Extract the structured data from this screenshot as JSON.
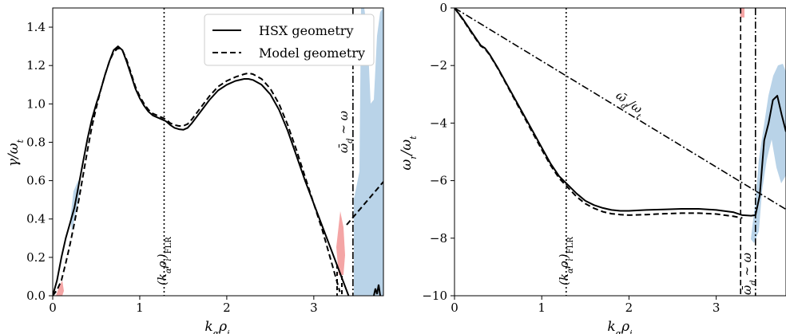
{
  "chart_data": [
    {
      "type": "line",
      "xlabel": "kαρi",
      "ylabel": "γ/ωt",
      "xlim": [
        0,
        3.8
      ],
      "ylim": [
        0,
        1.5
      ],
      "xticks": [
        "0",
        "1",
        "2",
        "3"
      ],
      "yticks": [
        "0.0",
        "0.2",
        "0.4",
        "0.6",
        "0.8",
        "1.0",
        "1.2",
        "1.4"
      ],
      "legend": {
        "placement": "top-right",
        "entries": [
          {
            "label": "HSX geometry",
            "style": "solid"
          },
          {
            "label": "Model geometry",
            "style": "dashed"
          }
        ]
      },
      "annotations": [
        {
          "text": "(kαρi)FLR",
          "x": 1.28
        },
        {
          "text": "ω̄d ∼ ω",
          "x": 3.45
        }
      ],
      "vlines": [
        {
          "x": 1.28,
          "style": "dotted"
        },
        {
          "x": 3.45,
          "style": "dashdot"
        }
      ],
      "colors": {
        "band_blue": "#b9d3e8",
        "band_red": "#f4a5a5"
      },
      "series": [
        {
          "style": "solid",
          "x": [
            0,
            0.05,
            0.1,
            0.15,
            0.2,
            0.25,
            0.3,
            0.35,
            0.4,
            0.45,
            0.5,
            0.55,
            0.6,
            0.65,
            0.7,
            0.75,
            0.8,
            0.85,
            0.9,
            0.95,
            1.0,
            1.05,
            1.1,
            1.15,
            1.2,
            1.25,
            1.3,
            1.35,
            1.4,
            1.45,
            1.5,
            1.55,
            1.6,
            1.7,
            1.8,
            1.9,
            2.0,
            2.1,
            2.2,
            2.25,
            2.3,
            2.4,
            2.5,
            2.6,
            2.7,
            2.8,
            2.9,
            3.0,
            3.1,
            3.2,
            3.3,
            3.35,
            3.4
          ],
          "y": [
            0,
            0.08,
            0.2,
            0.3,
            0.38,
            0.46,
            0.58,
            0.7,
            0.82,
            0.92,
            1.0,
            1.07,
            1.15,
            1.22,
            1.28,
            1.3,
            1.28,
            1.22,
            1.15,
            1.08,
            1.03,
            0.99,
            0.96,
            0.94,
            0.93,
            0.92,
            0.91,
            0.89,
            0.875,
            0.868,
            0.865,
            0.875,
            0.9,
            0.96,
            1.02,
            1.07,
            1.1,
            1.12,
            1.13,
            1.13,
            1.125,
            1.1,
            1.05,
            0.97,
            0.86,
            0.73,
            0.6,
            0.48,
            0.36,
            0.24,
            0.12,
            0.06,
            0
          ]
        },
        {
          "style": "dashed",
          "x": [
            0,
            0.05,
            0.1,
            0.15,
            0.2,
            0.25,
            0.3,
            0.35,
            0.4,
            0.45,
            0.5,
            0.55,
            0.6,
            0.65,
            0.7,
            0.75,
            0.8,
            0.85,
            0.9,
            0.95,
            1.0,
            1.05,
            1.1,
            1.15,
            1.2,
            1.25,
            1.3,
            1.35,
            1.4,
            1.45,
            1.5,
            1.55,
            1.6,
            1.7,
            1.8,
            1.9,
            2.0,
            2.1,
            2.2,
            2.25,
            2.3,
            2.4,
            2.5,
            2.6,
            2.7,
            2.8,
            2.9,
            3.0,
            3.1,
            3.2,
            3.3
          ],
          "y": [
            0,
            0.03,
            0.08,
            0.17,
            0.27,
            0.38,
            0.5,
            0.63,
            0.76,
            0.88,
            0.98,
            1.07,
            1.15,
            1.22,
            1.27,
            1.29,
            1.28,
            1.23,
            1.16,
            1.09,
            1.04,
            1.0,
            0.97,
            0.95,
            0.94,
            0.93,
            0.92,
            0.9,
            0.89,
            0.885,
            0.885,
            0.895,
            0.92,
            0.98,
            1.04,
            1.09,
            1.12,
            1.14,
            1.155,
            1.16,
            1.155,
            1.13,
            1.08,
            1.0,
            0.89,
            0.76,
            0.62,
            0.48,
            0.34,
            0.18,
            0.02
          ]
        }
      ]
    },
    {
      "type": "line",
      "xlabel": "kαρi",
      "ylabel": "ωr/ωt",
      "xlim": [
        0,
        3.8
      ],
      "ylim": [
        -10,
        0
      ],
      "xticks": [
        "0",
        "1",
        "2",
        "3"
      ],
      "yticks": [
        "−10",
        "−8",
        "−6",
        "−4",
        "−2",
        "0"
      ],
      "annotations": [
        {
          "text": "(kαρi)FLR",
          "x": 1.28
        },
        {
          "text": "ω̄d ∼ ω",
          "x": 3.45
        },
        {
          "text": "ω̄d/ωt",
          "x": 2.0
        }
      ],
      "vlines": [
        {
          "x": 1.28,
          "style": "dotted"
        },
        {
          "x": 3.45,
          "style": "dashdot"
        },
        {
          "x": 3.28,
          "style": "dashed"
        }
      ],
      "series": [
        {
          "style": "solid",
          "x": [
            0,
            0.1,
            0.2,
            0.3,
            0.35,
            0.4,
            0.5,
            0.6,
            0.7,
            0.8,
            0.9,
            1.0,
            1.1,
            1.2,
            1.3,
            1.4,
            1.5,
            1.6,
            1.7,
            1.8,
            1.9,
            2.0,
            2.2,
            2.4,
            2.6,
            2.8,
            3.0,
            3.2,
            3.3,
            3.4,
            3.45,
            3.5,
            3.55,
            3.6,
            3.65,
            3.7,
            3.75,
            3.8
          ],
          "y": [
            0,
            -0.4,
            -0.85,
            -1.3,
            -1.4,
            -1.6,
            -2.1,
            -2.65,
            -3.2,
            -3.75,
            -4.3,
            -4.85,
            -5.4,
            -5.85,
            -6.15,
            -6.45,
            -6.7,
            -6.85,
            -6.95,
            -7.02,
            -7.05,
            -7.05,
            -7.02,
            -7.0,
            -6.98,
            -6.98,
            -7.02,
            -7.1,
            -7.2,
            -7.22,
            -7.2,
            -6.5,
            -4.6,
            -4.0,
            -3.2,
            -3.05,
            -3.7,
            -4.3
          ]
        },
        {
          "style": "dashed",
          "x": [
            0,
            0.1,
            0.2,
            0.3,
            0.35,
            0.4,
            0.5,
            0.6,
            0.7,
            0.8,
            0.9,
            1.0,
            1.1,
            1.2,
            1.3,
            1.4,
            1.5,
            1.6,
            1.7,
            1.8,
            1.9,
            2.0,
            2.2,
            2.4,
            2.6,
            2.8,
            3.0,
            3.2,
            3.3
          ],
          "y": [
            0,
            -0.42,
            -0.88,
            -1.32,
            -1.42,
            -1.62,
            -2.12,
            -2.68,
            -3.24,
            -3.8,
            -4.36,
            -4.92,
            -5.46,
            -5.92,
            -6.24,
            -6.56,
            -6.8,
            -6.96,
            -7.08,
            -7.15,
            -7.18,
            -7.2,
            -7.18,
            -7.15,
            -7.13,
            -7.13,
            -7.16,
            -7.24,
            -7.3
          ]
        },
        {
          "style": "dashdot",
          "x": [
            0,
            3.8
          ],
          "y": [
            0,
            -7.0
          ]
        }
      ]
    }
  ]
}
